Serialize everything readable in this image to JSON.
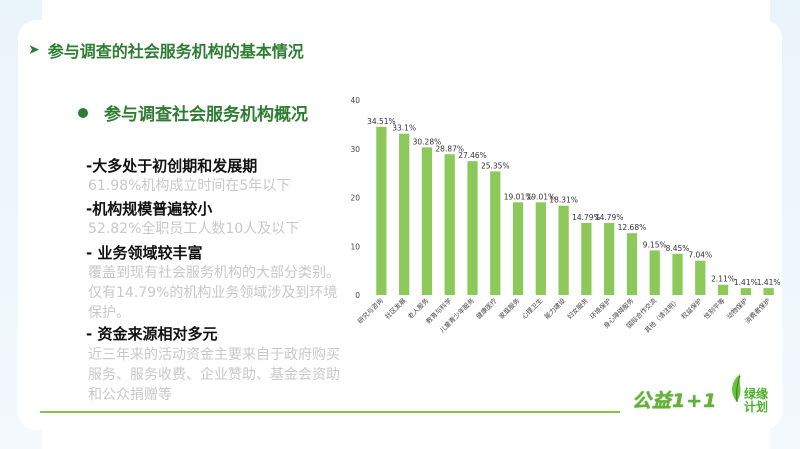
{
  "title": {
    "arrow": "➤",
    "text": "参与调查的社会服务机构的基本情况"
  },
  "section": {
    "text": "参与调查社会服务机构概况"
  },
  "points": [
    {
      "head": "-大多处于初创期和发展期",
      "sub": "61.98%机构成立时间在5年以下"
    },
    {
      "head": "-机构规模普遍较小",
      "sub": "52.82%全职员工人数10人及以下"
    },
    {
      "head": "-  业务领域较丰富",
      "sub": "覆盖到现有社会服务机构的大部分类别。仅有14.79%的机构业务领域涉及到环境保护。"
    },
    {
      "head": "-  资金来源相对多元",
      "sub": "近三年来的活动资金主要来自于政府购买服务、服务收费、企业赞助、基金会资助和公众捐赠等"
    }
  ],
  "logos": {
    "logo1": "公益1+1",
    "logo2_line1": "绿缘",
    "logo2_line2": "计划"
  },
  "colors": {
    "bar": "#8dc95a",
    "title_green": "#2e7d32",
    "accent_line": "#86c34a"
  },
  "chart_data": {
    "type": "bar",
    "categories": [
      "研究与咨询",
      "社区发展",
      "老人服务",
      "教育与科学",
      "儿童青少年服务",
      "健康医疗",
      "家庭服务",
      "心理卫生",
      "能力建设",
      "妇女服务",
      "环境保护",
      "身心障碍服务",
      "国际合作交流",
      "其他（请注明）",
      "权益保护",
      "性别平等",
      "动物保护",
      "消费者保护"
    ],
    "values": [
      34.51,
      33.1,
      30.28,
      28.87,
      27.46,
      25.35,
      19.01,
      19.01,
      18.31,
      14.79,
      14.79,
      12.68,
      9.15,
      8.45,
      7.04,
      2.11,
      1.41,
      1.41
    ],
    "labels": [
      "34.51%",
      "33.1%",
      "30.28%",
      "28.87%",
      "27.46%",
      "25.35%",
      "19.01%",
      "19.01%",
      "18.31%",
      "14.79%",
      "14.79%",
      "12.68%",
      "9.15%",
      "8.45%",
      "7.04%",
      "2.11%",
      "1.41%",
      "1.41%"
    ],
    "ylim": [
      0,
      40
    ],
    "yticks": [
      "0",
      "10",
      "20",
      "30",
      "40"
    ],
    "grid": false
  }
}
